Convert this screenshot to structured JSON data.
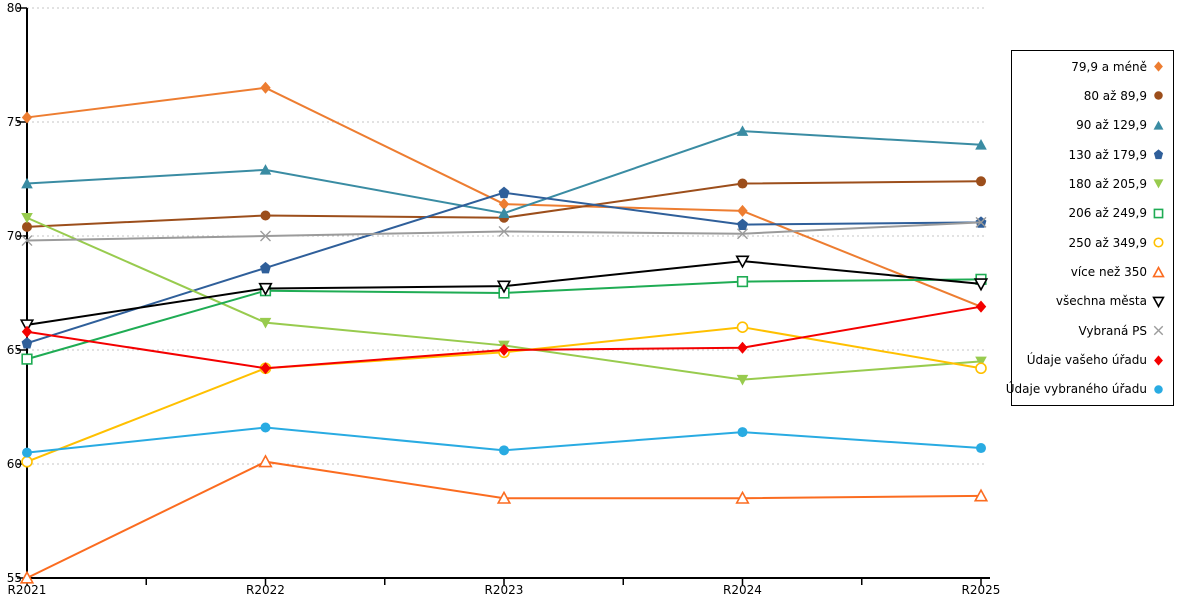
{
  "chart_data": {
    "type": "line",
    "title": "",
    "xlabel": "",
    "ylabel": "",
    "categories": [
      "R2021",
      "R2022",
      "R2023",
      "R2024",
      "R2025"
    ],
    "ylim": [
      55,
      80
    ],
    "y_tick_labels": [
      "55",
      "60",
      "65",
      "70",
      "75",
      "80"
    ],
    "grid": "horizontal-dotted",
    "legend_position": "right",
    "series": [
      {
        "name": "79,9 a méně",
        "color": "#ED7D31",
        "marker": "diamond",
        "fill": "filled",
        "values": [
          75.2,
          76.5,
          71.4,
          71.1,
          66.9
        ]
      },
      {
        "name": "80 až 89,9",
        "color": "#9C4E1B",
        "marker": "circle",
        "fill": "filled",
        "values": [
          70.4,
          70.9,
          70.8,
          72.3,
          72.4
        ]
      },
      {
        "name": "90 až 129,9",
        "color": "#3A8CA3",
        "marker": "triangle-up",
        "fill": "filled",
        "values": [
          72.3,
          72.9,
          71.0,
          74.6,
          74.0
        ]
      },
      {
        "name": "130 až 179,9",
        "color": "#2F5F9A",
        "marker": "pentagon",
        "fill": "filled",
        "values": [
          65.3,
          68.6,
          71.9,
          70.5,
          70.6
        ]
      },
      {
        "name": "180 až 205,9",
        "color": "#98CB4E",
        "marker": "triangle-down",
        "fill": "filled",
        "values": [
          70.8,
          66.2,
          65.2,
          63.7,
          64.5
        ]
      },
      {
        "name": "206 až 249,9",
        "color": "#1FAC54",
        "marker": "square",
        "fill": "open",
        "values": [
          64.6,
          67.6,
          67.5,
          68.0,
          68.1
        ]
      },
      {
        "name": "250 až 349,9",
        "color": "#FFC000",
        "marker": "circle",
        "fill": "open",
        "values": [
          60.1,
          64.2,
          64.9,
          66.0,
          64.2
        ]
      },
      {
        "name": "více než 350",
        "color": "#FB6C20",
        "marker": "triangle-up",
        "fill": "open",
        "values": [
          55.0,
          60.1,
          58.5,
          58.5,
          58.6
        ]
      },
      {
        "name": "všechna města",
        "color": "#000000",
        "marker": "triangle-down",
        "fill": "open",
        "values": [
          66.1,
          67.7,
          67.8,
          68.9,
          67.9
        ]
      },
      {
        "name": "Vybraná PS",
        "color": "#9B9B9B",
        "marker": "x",
        "fill": "open",
        "values": [
          69.8,
          70.0,
          70.2,
          70.1,
          70.6
        ]
      },
      {
        "name": "Údaje vašeho úřadu",
        "color": "#F40000",
        "marker": "diamond",
        "fill": "filled",
        "values": [
          65.8,
          64.2,
          65.0,
          65.1,
          66.9
        ]
      },
      {
        "name": "Údaje vybraného úřadu",
        "color": "#29ABE2",
        "marker": "circle",
        "fill": "filled",
        "values": [
          60.5,
          61.6,
          60.6,
          61.4,
          60.7
        ]
      }
    ],
    "colors": {
      "axis": "#000000",
      "gridline": "#C6C6C6",
      "background": "#FFFFFF"
    }
  }
}
